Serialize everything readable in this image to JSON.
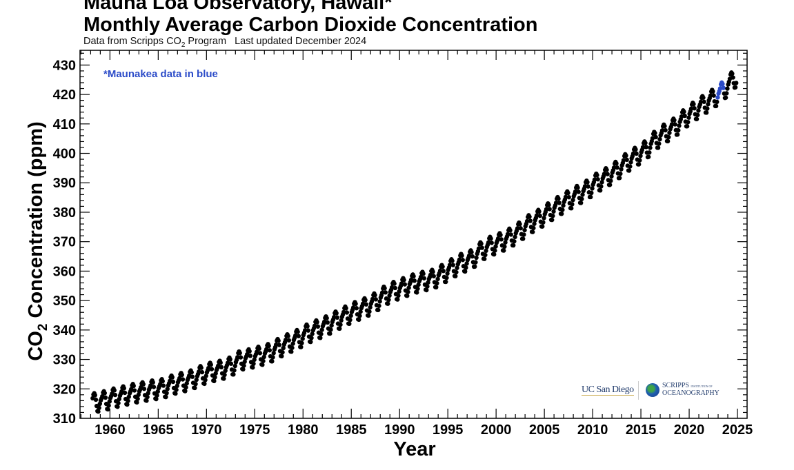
{
  "chart_data": {
    "type": "scatter",
    "title_line1": "Mauna Loa Observatory, Hawaii*",
    "title_line2": "Monthly Average Carbon Dioxide Concentration",
    "subtitle_prefix": "Data from Scripps CO",
    "subtitle_sub": "2",
    "subtitle_suffix": " Program   Last updated December 2024",
    "annotation": "*Maunakea data in blue",
    "xlabel": "Year",
    "ylabel_prefix": "CO",
    "ylabel_sub": "2",
    "ylabel_suffix": " Concentration (ppm)",
    "xlim": [
      1956.9,
      2026
    ],
    "ylim": [
      310,
      435
    ],
    "xticks": [
      1960,
      1965,
      1970,
      1975,
      1980,
      1985,
      1990,
      1995,
      2000,
      2005,
      2010,
      2015,
      2020,
      2025
    ],
    "yticks": [
      310,
      320,
      330,
      340,
      350,
      360,
      370,
      380,
      390,
      400,
      410,
      420,
      430
    ],
    "grid": false,
    "colors": {
      "mauna_loa": "#000000",
      "maunakea": "#2b4bc8"
    },
    "series_description": "Monthly points = annual mean + seasonal offset",
    "start": {
      "year": 1958,
      "month": 3
    },
    "end": {
      "year": 2024,
      "month": 11
    },
    "annual_means": {
      "1958": 315.3,
      "1959": 315.98,
      "1960": 316.91,
      "1961": 317.64,
      "1962": 318.45,
      "1963": 318.99,
      "1964": 319.62,
      "1965": 320.04,
      "1966": 321.37,
      "1967": 322.18,
      "1968": 323.05,
      "1969": 324.62,
      "1970": 325.68,
      "1971": 326.32,
      "1972": 327.46,
      "1973": 329.68,
      "1974": 330.19,
      "1975": 331.12,
      "1976": 332.03,
      "1977": 333.84,
      "1978": 335.41,
      "1979": 336.84,
      "1980": 338.76,
      "1981": 340.12,
      "1982": 341.48,
      "1983": 343.15,
      "1984": 344.87,
      "1985": 346.35,
      "1986": 347.61,
      "1987": 349.31,
      "1988": 351.69,
      "1989": 353.2,
      "1990": 354.45,
      "1991": 355.7,
      "1992": 356.54,
      "1993": 357.21,
      "1994": 358.96,
      "1995": 360.97,
      "1996": 362.74,
      "1997": 363.88,
      "1998": 366.84,
      "1999": 368.54,
      "2000": 369.71,
      "2001": 371.32,
      "2002": 373.45,
      "2003": 375.98,
      "2004": 377.7,
      "2005": 379.98,
      "2006": 382.09,
      "2007": 384.02,
      "2008": 385.83,
      "2009": 387.64,
      "2010": 390.1,
      "2011": 391.85,
      "2012": 394.06,
      "2013": 396.74,
      "2014": 398.81,
      "2015": 401.01,
      "2016": 404.41,
      "2017": 406.76,
      "2018": 408.72,
      "2019": 411.65,
      "2020": 414.21,
      "2021": 416.41,
      "2022": 418.53,
      "2023": 421.08,
      "2024": 424.6
    },
    "seasonal_offsets": [
      0.4,
      1.0,
      1.7,
      2.9,
      3.3,
      2.6,
      1.0,
      -1.2,
      -3.0,
      -3.2,
      -2.0,
      -0.7
    ],
    "maunakea_range": {
      "from": [
        2022,
        12
      ],
      "to": [
        2023,
        7
      ]
    }
  },
  "logos": {
    "ucsd": "UC San Diego",
    "scripps_line1": "SCRIPPS",
    "scripps_small": "INSTITUTION OF",
    "scripps_line2": "OCEANOGRAPHY"
  }
}
